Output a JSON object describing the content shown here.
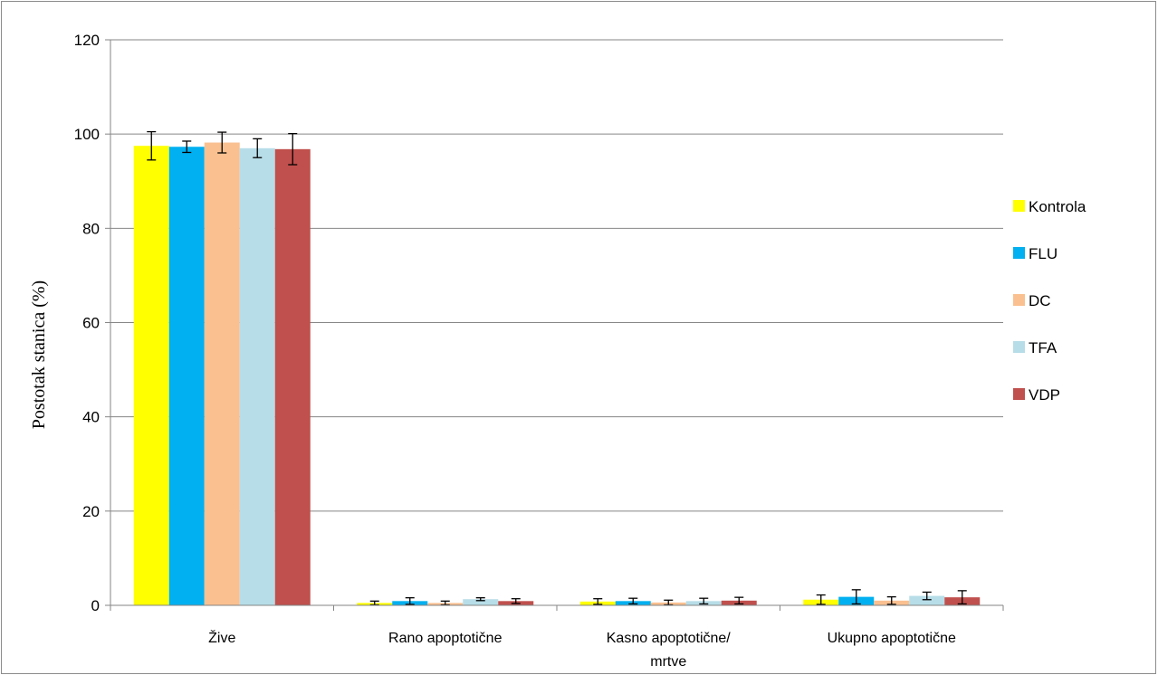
{
  "chart_data": {
    "type": "bar",
    "title": "",
    "xlabel": "",
    "ylabel": "Postotak stanica (%)",
    "ylim": [
      0,
      120
    ],
    "yticks": [
      "0",
      "20",
      "40",
      "60",
      "80",
      "100",
      "120"
    ],
    "grid": true,
    "legend_position": "right",
    "categories": [
      [
        "Žive"
      ],
      [
        "Rano apoptotične"
      ],
      [
        "Kasno apoptotične/",
        "mrtve"
      ],
      [
        "Ukupno apoptotične"
      ]
    ],
    "series": [
      {
        "name": "Kontrola",
        "color": "#ffff00",
        "values": [
          97.5,
          0.5,
          0.8,
          1.2
        ],
        "errors": [
          3.0,
          0.4,
          0.6,
          1.0
        ]
      },
      {
        "name": "FLU",
        "color": "#00b0f0",
        "values": [
          97.3,
          0.9,
          0.9,
          1.8
        ],
        "errors": [
          1.2,
          0.7,
          0.6,
          1.5
        ]
      },
      {
        "name": "DC",
        "color": "#fac090",
        "values": [
          98.2,
          0.5,
          0.6,
          1.0
        ],
        "errors": [
          2.2,
          0.4,
          0.5,
          0.8
        ]
      },
      {
        "name": "TFA",
        "color": "#b7dde8",
        "values": [
          97.0,
          1.3,
          0.9,
          2.0
        ],
        "errors": [
          2.0,
          0.3,
          0.6,
          0.8
        ]
      },
      {
        "name": "VDP",
        "color": "#c0504d",
        "values": [
          96.8,
          0.9,
          1.0,
          1.7
        ],
        "errors": [
          3.3,
          0.5,
          0.7,
          1.4
        ]
      }
    ]
  }
}
